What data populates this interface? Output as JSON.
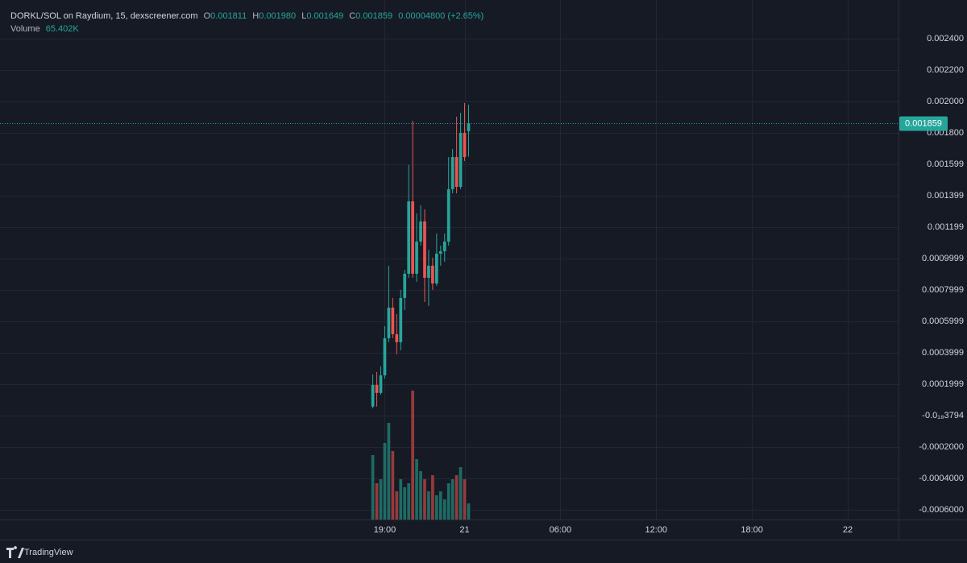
{
  "chart_data": {
    "type": "candlestick",
    "header": {
      "symbol": "DORKL/SOL on Raydium, 15, dexscreener.com",
      "open_key": "O",
      "open": "0.001811",
      "high_key": "H",
      "high": "0.001980",
      "low_key": "L",
      "low": "0.001649",
      "close_key": "C",
      "close": "0.001859",
      "change": "0.00004800 (+2.65%)",
      "volume_key": "Volume",
      "volume": "65.402K"
    },
    "x": [
      18.25,
      18.5,
      18.75,
      19,
      19.25,
      19.5,
      19.75,
      20,
      20.25,
      20.5,
      20.75,
      21,
      21.25,
      21.5,
      21.75,
      22,
      22.25,
      22.5,
      22.75,
      23,
      23.25,
      23.5,
      23.75,
      24,
      24.25
    ],
    "open": [
      5.7e-05,
      0.000195,
      0.000144,
      0.000256,
      0.000492,
      0.000687,
      0.000518,
      0.000467,
      0.000749,
      0.000903,
      0.001364,
      0.000903,
      0.001108,
      0.001236,
      0.000877,
      0.000954,
      0.000841,
      0.001031,
      0.001046,
      0.001108,
      0.001441,
      0.001646,
      0.001456,
      0.0018,
      0.001811
    ],
    "high": [
      0.000262,
      0.000277,
      0.000313,
      0.000569,
      0.000954,
      0.000749,
      0.000646,
      0.0008,
      0.000928,
      0.001595,
      0.001877,
      0.001287,
      0.001338,
      0.001313,
      0.001056,
      0.001005,
      0.001159,
      0.001082,
      0.001159,
      0.001646,
      0.001697,
      0.001903,
      0.001928,
      0.00199,
      0.00198
    ],
    "low": [
      4.6e-05,
      5.7e-05,
      0.000133,
      0.000236,
      0.000467,
      0.000492,
      0.00039,
      0.000415,
      0.000672,
      0.000877,
      0.000877,
      0.000851,
      0.001082,
      0.000723,
      0.000698,
      0.0008,
      0.000826,
      0.000954,
      0.00098,
      0.001082,
      0.001415,
      0.001415,
      0.001441,
      0.001621,
      0.001649
    ],
    "close": [
      0.000195,
      0.000144,
      0.000256,
      0.000492,
      0.000687,
      0.000518,
      0.000467,
      0.000749,
      0.000903,
      0.001364,
      0.000903,
      0.001108,
      0.001236,
      0.000877,
      0.000954,
      0.000841,
      0.001031,
      0.001046,
      0.001108,
      0.001441,
      0.001646,
      0.001456,
      0.0018,
      0.001646,
      0.001859
    ],
    "volume": [
      261608,
      147155,
      163505,
      310660,
      392412,
      277959,
      114454,
      163505,
      130804,
      147155,
      523216,
      245258,
      196206,
      163505,
      114454,
      179856,
      98103,
      114454,
      81753,
      147155,
      163505,
      179856,
      212556,
      163505,
      65402
    ],
    "up_color": "#26a69a",
    "down_color": "#ef5350",
    "volume_up_color": "#1e6b64",
    "volume_down_color": "#98393b",
    "last_price": 0.001859,
    "last_price_label": "0.001859",
    "xlim": [
      -5.1,
      51.18
    ],
    "xticks": [
      {
        "value": 19,
        "label": "19:00"
      },
      {
        "value": 24,
        "label": "21"
      },
      {
        "value": 30,
        "label": "06:00"
      },
      {
        "value": 36,
        "label": "12:00"
      },
      {
        "value": 42,
        "label": "18:00"
      },
      {
        "value": 48,
        "label": "22"
      }
    ],
    "ylim": [
      -0.000662,
      0.002646
    ],
    "yticks": [
      {
        "value": 0.0024,
        "label": "0.002400"
      },
      {
        "value": 0.0022,
        "label": "0.002200"
      },
      {
        "value": 0.002,
        "label": "0.002000"
      },
      {
        "value": 0.0018,
        "label": "0.001800"
      },
      {
        "value": 0.001599,
        "label": "0.001599"
      },
      {
        "value": 0.001399,
        "label": "0.001399"
      },
      {
        "value": 0.001199,
        "label": "0.001199"
      },
      {
        "value": 0.0009999,
        "label": "0.0009999"
      },
      {
        "value": 0.0007999,
        "label": "0.0007999"
      },
      {
        "value": 0.0005999,
        "label": "0.0005999"
      },
      {
        "value": 0.0003999,
        "label": "0.0003999"
      },
      {
        "value": 0.0001999,
        "label": "0.0001999"
      },
      {
        "value": -3.794e-19,
        "label": "-0.0₁₈3794"
      },
      {
        "value": -0.0002,
        "label": "-0.0002000"
      },
      {
        "value": -0.0004,
        "label": "-0.0004000"
      },
      {
        "value": -0.0006,
        "label": "-0.0006000"
      }
    ],
    "grid": true,
    "branding": "TradingView"
  }
}
